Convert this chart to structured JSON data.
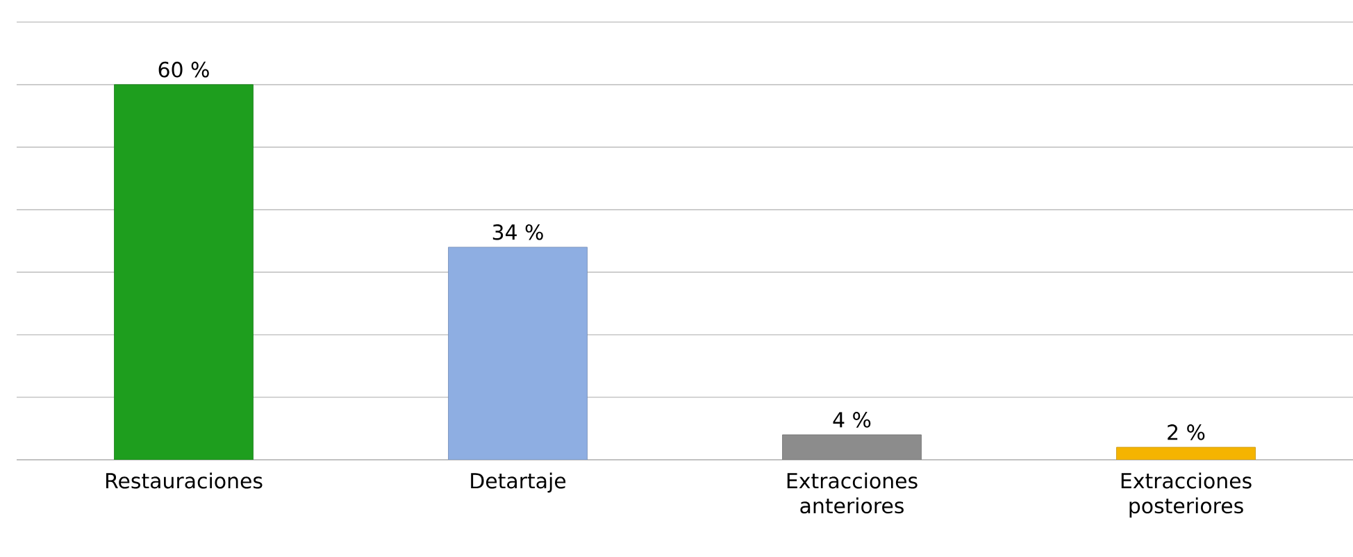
{
  "chart_data": {
    "type": "bar",
    "categories": [
      "Restauraciones",
      "Detartaje",
      "Extracciones anteriores",
      "Extracciones posteriores"
    ],
    "values": [
      60,
      34,
      4,
      2
    ],
    "colors": [
      "#1e9e1e",
      "#8eaee2",
      "#8c8c8c",
      "#f5b400"
    ],
    "value_labels": [
      "60 %",
      "34 %",
      "4 %",
      "2 %"
    ],
    "grid": "y",
    "tick_labels": "x"
  }
}
